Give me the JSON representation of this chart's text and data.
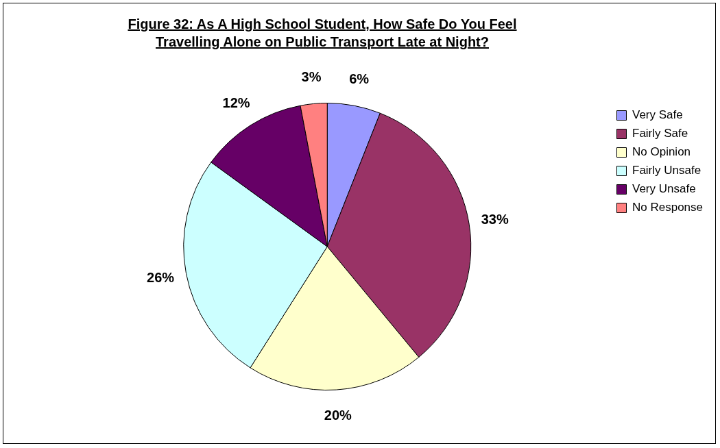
{
  "chart_data": {
    "type": "pie",
    "title": "Figure 32: As A High School Student, How Safe Do You Feel Travelling Alone on Public Transport Late at Night?",
    "categories": [
      "Very Safe",
      "Fairly Safe",
      "No Opinion",
      "Fairly Unsafe",
      "Very Unsafe",
      "No Response"
    ],
    "values": [
      6,
      33,
      20,
      26,
      12,
      3
    ],
    "colors": [
      "#9999ff",
      "#993366",
      "#ffffcc",
      "#ccffff",
      "#660066",
      "#ff8080"
    ],
    "value_labels": [
      "6%",
      "33%",
      "20%",
      "26%",
      "12%",
      "3%"
    ],
    "legend": "top right"
  }
}
